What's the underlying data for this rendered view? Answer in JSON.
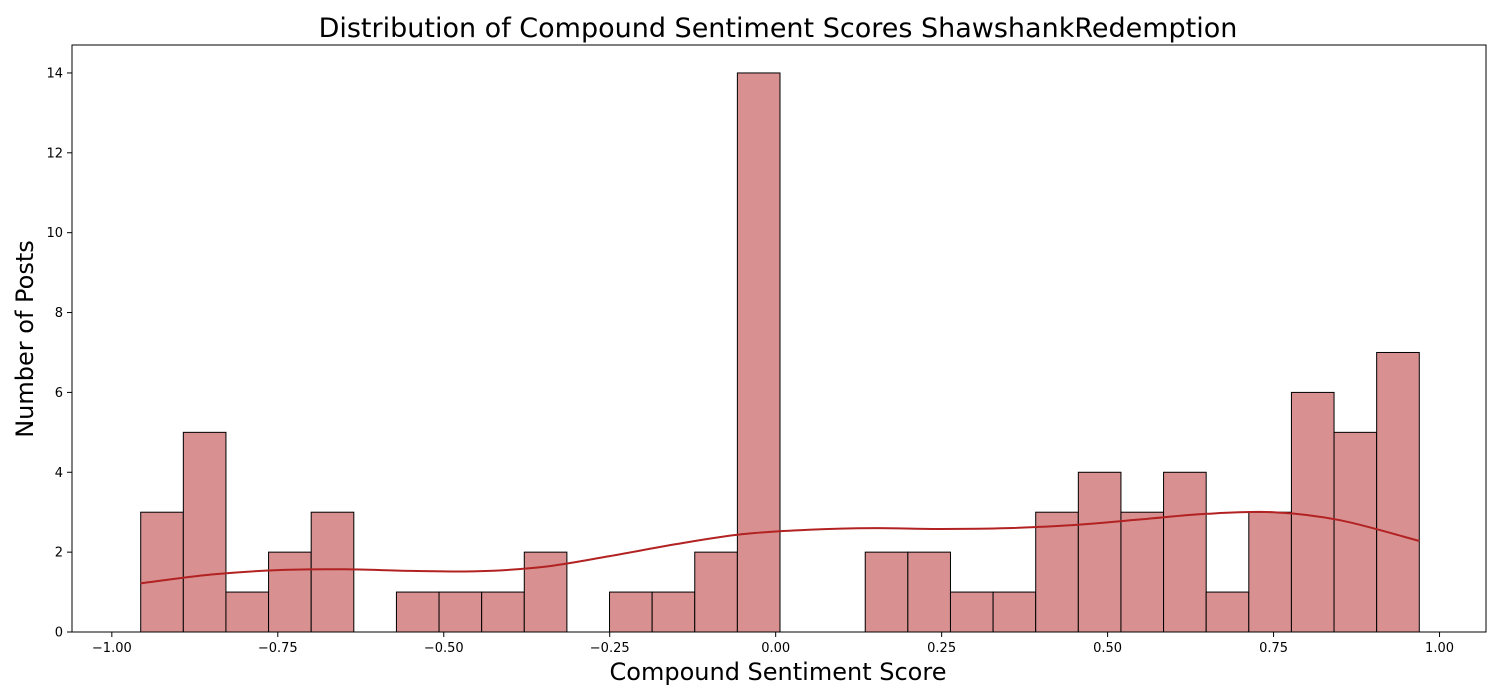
{
  "chart_data": {
    "type": "bar",
    "title": "Distribution of Compound Sentiment Scores ShawshankRedemption",
    "xlabel": "Compound Sentiment Score",
    "ylabel": "Number of Posts",
    "xlim": [
      -1.06,
      1.07
    ],
    "ylim": [
      0,
      14.7
    ],
    "x_ticks": [
      -1.0,
      -0.75,
      -0.5,
      -0.25,
      0.0,
      0.25,
      0.5,
      0.75,
      1.0
    ],
    "x_tick_labels": [
      "−1.00",
      "−0.75",
      "−0.50",
      "−0.25",
      "0.00",
      "0.25",
      "0.50",
      "0.75",
      "1.00"
    ],
    "y_ticks": [
      0,
      2,
      4,
      6,
      8,
      10,
      12,
      14
    ],
    "y_tick_labels": [
      "0",
      "2",
      "4",
      "6",
      "8",
      "10",
      "12",
      "14"
    ],
    "bin_start": -0.9565,
    "bin_width": 0.0642,
    "counts": [
      3,
      5,
      1,
      2,
      3,
      0,
      1,
      1,
      1,
      2,
      0,
      1,
      1,
      2,
      14,
      0,
      0,
      2,
      2,
      1,
      1,
      3,
      4,
      3,
      4,
      1,
      3,
      6,
      5,
      7
    ],
    "kde_x": [
      -0.9565,
      -0.85,
      -0.75,
      -0.65,
      -0.55,
      -0.45,
      -0.35,
      -0.25,
      -0.15,
      -0.05,
      0.05,
      0.15,
      0.25,
      0.35,
      0.45,
      0.55,
      0.65,
      0.75,
      0.85,
      0.9695
    ],
    "kde_y": [
      1.22,
      1.44,
      1.55,
      1.57,
      1.53,
      1.52,
      1.63,
      1.9,
      2.2,
      2.45,
      2.56,
      2.6,
      2.58,
      2.6,
      2.68,
      2.82,
      2.96,
      3.0,
      2.8,
      2.28
    ],
    "colors": {
      "bar_fill": "#d89090",
      "bar_edge": "#000000",
      "kde_line": "#b22222"
    }
  }
}
